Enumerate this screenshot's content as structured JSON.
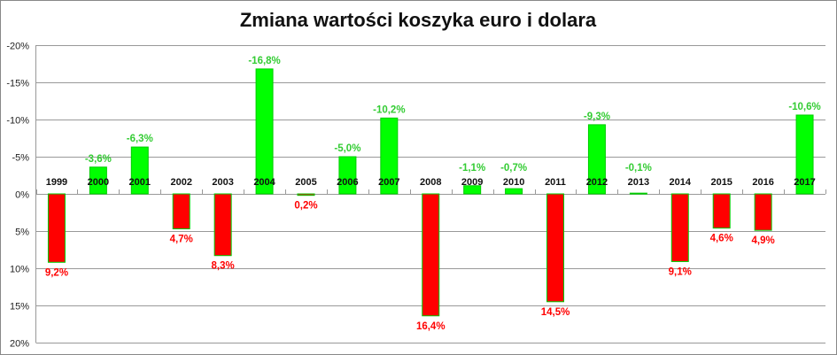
{
  "chart_data": {
    "type": "bar",
    "title": "Zmiana wartości koszyka euro i dolara",
    "xlabel": "",
    "ylabel": "",
    "ylim": [
      -20,
      20
    ],
    "y_inverted": true,
    "y_ticks": [
      -20,
      -15,
      -10,
      -5,
      0,
      5,
      10,
      15,
      20
    ],
    "y_tick_labels": [
      "-20%",
      "-15%",
      "-10%",
      "-5%",
      "0%",
      "5%",
      "10%",
      "15%",
      "20%"
    ],
    "grid": true,
    "categories": [
      "1999",
      "2000",
      "2001",
      "2002",
      "2003",
      "2004",
      "2005",
      "2006",
      "2007",
      "2008",
      "2009",
      "2010",
      "2011",
      "2012",
      "2013",
      "2014",
      "2015",
      "2016",
      "2017"
    ],
    "values": [
      9.2,
      -3.6,
      -6.3,
      4.7,
      8.3,
      -16.8,
      0.2,
      -5.0,
      -10.2,
      16.4,
      -1.1,
      -0.7,
      14.5,
      -9.3,
      -0.1,
      9.1,
      4.6,
      4.9,
      -10.6
    ],
    "data_labels": [
      "9,2%",
      "-3,6%",
      "-6,3%",
      "4,7%",
      "8,3%",
      "-16,8%",
      "0,2%",
      "-5,0%",
      "-10,2%",
      "16,4%",
      "-1,1%",
      "-0,7%",
      "14,5%",
      "-9,3%",
      "-0,1%",
      "9,1%",
      "4,6%",
      "4,9%",
      "-10,6%"
    ],
    "colors": {
      "positive": "#ff0000",
      "negative": "#00ff00",
      "positive_label": "#ff0000",
      "negative_label": "#33cc33",
      "border": "#00cc00"
    }
  }
}
